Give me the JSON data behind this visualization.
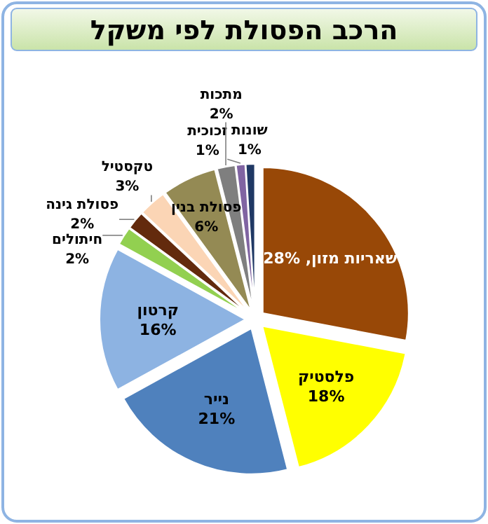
{
  "chart_data": {
    "type": "pie",
    "title": "הרכב הפסולת לפי משקל",
    "categories": [
      "שאריות מזון",
      "פלסטיק",
      "נייר",
      "קרטון",
      "חיתולים",
      "פסולת גינה",
      "טקסטיל",
      "פסולת בנין",
      "מתכות",
      "זכוכית",
      "שונות"
    ],
    "values": [
      28,
      18,
      21,
      16,
      2,
      2,
      3,
      6,
      2,
      1,
      1
    ],
    "value_labels": [
      ", 28%",
      "18%",
      "21%",
      "16%",
      "2%",
      "2%",
      "3%",
      "6%",
      "2%",
      "1%",
      "1%"
    ],
    "colors": [
      "#984807",
      "#ffff00",
      "#4f81bd",
      "#8db3e2",
      "#92d050",
      "#632a0d",
      "#fbd5b5",
      "#948a54",
      "#7f7f7f",
      "#8064a2",
      "#1f3864"
    ]
  }
}
